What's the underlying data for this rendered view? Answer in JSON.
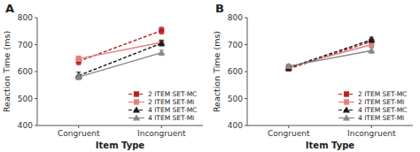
{
  "chart_data": [
    {
      "type": "line",
      "title": "A",
      "x_label": "Item Type",
      "y_label": "Reaction Time (ms)",
      "categories": [
        "Congruent",
        "Incongruent"
      ],
      "ylim": [
        400,
        800
      ],
      "yticks": [
        400,
        500,
        600,
        700,
        800
      ],
      "grid": false,
      "legend": "lower right",
      "series": [
        {
          "name": "2 ITEM SET-MC",
          "color": "#b52020",
          "line_style": "dashed",
          "marker": "square",
          "values": [
            638,
            752
          ],
          "errors": [
            13,
            13
          ]
        },
        {
          "name": "2 ITEM SET-MI",
          "color": "#e08080",
          "line_style": "solid",
          "marker": "square",
          "values": [
            648,
            708
          ],
          "errors": [
            10,
            10
          ]
        },
        {
          "name": "4 ITEM SET-MC",
          "color": "#1a1a1a",
          "line_style": "dashed",
          "marker": "triangle",
          "values": [
            585,
            705
          ],
          "errors": [
            13,
            10
          ]
        },
        {
          "name": "4 ITEM SET-MI",
          "color": "#888888",
          "line_style": "solid",
          "marker": "triangle",
          "values": [
            580,
            670
          ],
          "errors": [
            10,
            10
          ]
        }
      ]
    },
    {
      "type": "line",
      "title": "B",
      "x_label": "Item Type",
      "y_label": "Reaction Time (ms)",
      "categories": [
        "Congruent",
        "Incongruent"
      ],
      "ylim": [
        400,
        800
      ],
      "yticks": [
        400,
        500,
        600,
        700,
        800
      ],
      "grid": false,
      "legend": "lower right",
      "series": [
        {
          "name": "2 ITEM SET-MC",
          "color": "#b52020",
          "line_style": "dashed",
          "marker": "square",
          "values": [
            610,
            712
          ],
          "errors": [
            8,
            12
          ]
        },
        {
          "name": "2 ITEM SET-MI",
          "color": "#e08080",
          "line_style": "solid",
          "marker": "square",
          "values": [
            617,
            700
          ],
          "errors": [
            8,
            10
          ]
        },
        {
          "name": "4 ITEM SET-MC",
          "color": "#1a1a1a",
          "line_style": "dashed",
          "marker": "triangle",
          "values": [
            614,
            718
          ],
          "errors": [
            8,
            10
          ]
        },
        {
          "name": "4 ITEM SET-MI",
          "color": "#888888",
          "line_style": "solid",
          "marker": "triangle",
          "values": [
            620,
            678
          ],
          "errors": [
            8,
            10
          ]
        }
      ]
    }
  ]
}
